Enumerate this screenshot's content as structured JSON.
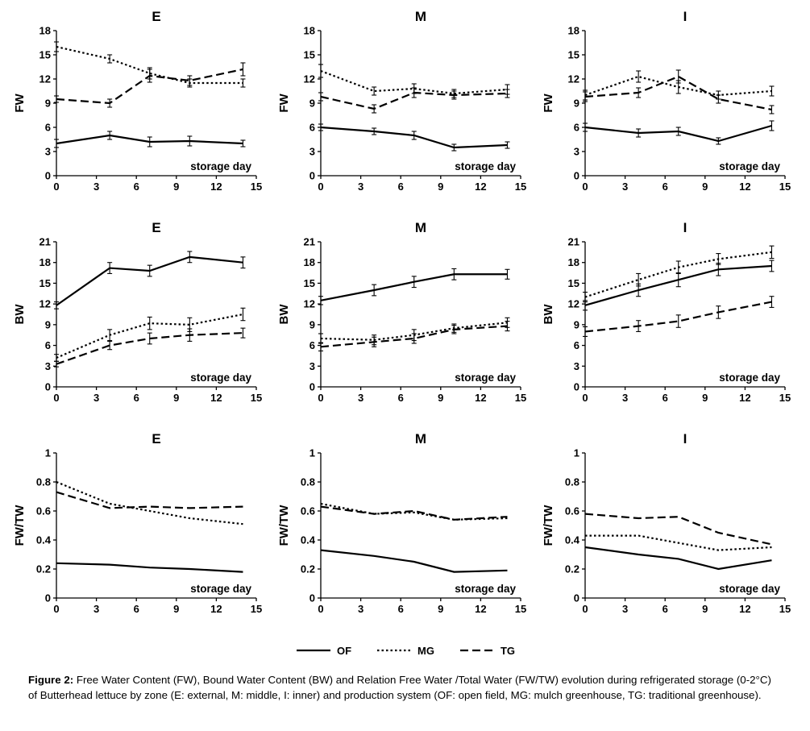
{
  "page": {
    "background": "#ffffff",
    "line_color": "#000000"
  },
  "legend": {
    "items": [
      {
        "label": "OF",
        "style": "solid"
      },
      {
        "label": "MG",
        "style": "dotted"
      },
      {
        "label": "TG",
        "style": "dashed"
      }
    ]
  },
  "caption": {
    "label": "Figure 2:",
    "text": "Free Water Content (FW), Bound Water Content (BW) and Relation Free Water /Total Water (FW/TW) evolution during refrigerated storage (0-2°C) of Butterhead lettuce by zone (E: external, M: middle, I: inner) and production system (OF: open field, MG: mulch greenhouse, TG: traditional greenhouse)."
  },
  "chart_data": [
    {
      "type": "line",
      "title": "E",
      "ylabel": "FW",
      "xlabel_annotation": "storage day",
      "xlim": [
        0,
        15
      ],
      "xticks": [
        0,
        3,
        6,
        9,
        12,
        15
      ],
      "ylim": [
        0,
        18
      ],
      "yticks": [
        0,
        3,
        6,
        9,
        12,
        15,
        18
      ],
      "x": [
        0,
        4,
        7,
        10,
        14
      ],
      "series": [
        {
          "name": "OF",
          "style": "solid",
          "values": [
            4.0,
            5.0,
            4.2,
            4.3,
            4.0
          ],
          "errors": [
            0.5,
            0.5,
            0.6,
            0.6,
            0.4
          ]
        },
        {
          "name": "MG",
          "style": "dotted",
          "values": [
            16.0,
            14.5,
            12.7,
            11.5,
            11.5
          ],
          "errors": [
            0.6,
            0.5,
            0.7,
            0.5,
            0.5
          ]
        },
        {
          "name": "TG",
          "style": "dashed",
          "values": [
            9.5,
            9.0,
            12.4,
            11.8,
            13.2
          ],
          "errors": [
            0.4,
            0.5,
            0.8,
            0.6,
            0.8
          ]
        }
      ]
    },
    {
      "type": "line",
      "title": "M",
      "ylabel": "FW",
      "xlabel_annotation": "storage day",
      "xlim": [
        0,
        15
      ],
      "xticks": [
        0,
        3,
        6,
        9,
        12,
        15
      ],
      "ylim": [
        0,
        18
      ],
      "yticks": [
        0,
        3,
        6,
        9,
        12,
        15,
        18
      ],
      "x": [
        0,
        4,
        7,
        10,
        14
      ],
      "series": [
        {
          "name": "OF",
          "style": "solid",
          "values": [
            6.0,
            5.5,
            5.0,
            3.5,
            3.8
          ],
          "errors": [
            0.4,
            0.4,
            0.5,
            0.4,
            0.4
          ]
        },
        {
          "name": "MG",
          "style": "dotted",
          "values": [
            13.0,
            10.5,
            10.8,
            10.2,
            10.7
          ],
          "errors": [
            0.8,
            0.5,
            0.6,
            0.5,
            0.6
          ]
        },
        {
          "name": "TG",
          "style": "dashed",
          "values": [
            9.8,
            8.3,
            10.3,
            10.0,
            10.2
          ],
          "errors": [
            0.5,
            0.5,
            0.6,
            0.5,
            0.5
          ]
        }
      ]
    },
    {
      "type": "line",
      "title": "I",
      "ylabel": "FW",
      "xlabel_annotation": "storage day",
      "xlim": [
        0,
        15
      ],
      "xticks": [
        0,
        3,
        6,
        9,
        12,
        15
      ],
      "ylim": [
        0,
        18
      ],
      "yticks": [
        0,
        3,
        6,
        9,
        12,
        15,
        18
      ],
      "x": [
        0,
        4,
        7,
        10,
        14
      ],
      "series": [
        {
          "name": "OF",
          "style": "solid",
          "values": [
            6.0,
            5.3,
            5.5,
            4.3,
            6.2
          ],
          "errors": [
            0.5,
            0.5,
            0.5,
            0.4,
            0.6
          ]
        },
        {
          "name": "MG",
          "style": "dotted",
          "values": [
            10.0,
            12.3,
            11.0,
            10.0,
            10.5
          ],
          "errors": [
            0.6,
            0.7,
            0.8,
            0.5,
            0.6
          ]
        },
        {
          "name": "TG",
          "style": "dashed",
          "values": [
            9.8,
            10.3,
            12.3,
            9.5,
            8.2
          ],
          "errors": [
            0.6,
            0.6,
            0.8,
            0.5,
            0.5
          ]
        }
      ]
    },
    {
      "type": "line",
      "title": "E",
      "ylabel": "BW",
      "xlabel_annotation": "storage day",
      "xlim": [
        0,
        15
      ],
      "xticks": [
        0,
        3,
        6,
        9,
        12,
        15
      ],
      "ylim": [
        0,
        21
      ],
      "yticks": [
        0,
        3,
        6,
        9,
        12,
        15,
        18,
        21
      ],
      "x": [
        0,
        4,
        7,
        10,
        14
      ],
      "series": [
        {
          "name": "OF",
          "style": "solid",
          "values": [
            11.8,
            17.2,
            16.8,
            18.8,
            18.0
          ],
          "errors": [
            0.5,
            0.8,
            0.8,
            0.8,
            0.8
          ]
        },
        {
          "name": "MG",
          "style": "dotted",
          "values": [
            4.2,
            7.5,
            9.2,
            9.0,
            10.5
          ],
          "errors": [
            0.5,
            0.8,
            0.9,
            1.0,
            0.9
          ]
        },
        {
          "name": "TG",
          "style": "dashed",
          "values": [
            3.3,
            6.0,
            7.0,
            7.5,
            7.8
          ],
          "errors": [
            0.4,
            0.6,
            0.8,
            0.9,
            0.7
          ]
        }
      ]
    },
    {
      "type": "line",
      "title": "M",
      "ylabel": "BW",
      "xlabel_annotation": "storage day",
      "xlim": [
        0,
        15
      ],
      "xticks": [
        0,
        3,
        6,
        9,
        12,
        15
      ],
      "ylim": [
        0,
        21
      ],
      "yticks": [
        0,
        3,
        6,
        9,
        12,
        15,
        18,
        21
      ],
      "x": [
        0,
        4,
        7,
        10,
        14
      ],
      "series": [
        {
          "name": "OF",
          "style": "solid",
          "values": [
            12.5,
            14.0,
            15.2,
            16.3,
            16.3
          ],
          "errors": [
            0.6,
            0.8,
            0.8,
            0.8,
            0.7
          ]
        },
        {
          "name": "MG",
          "style": "dotted",
          "values": [
            7.0,
            6.8,
            7.5,
            8.5,
            9.3
          ],
          "errors": [
            0.7,
            0.7,
            0.8,
            0.6,
            0.7
          ]
        },
        {
          "name": "TG",
          "style": "dashed",
          "values": [
            5.8,
            6.5,
            7.0,
            8.3,
            8.8
          ],
          "errors": [
            0.6,
            0.7,
            0.7,
            0.6,
            0.7
          ]
        }
      ]
    },
    {
      "type": "line",
      "title": "I",
      "ylabel": "BW",
      "xlabel_annotation": "storage day",
      "xlim": [
        0,
        15
      ],
      "xticks": [
        0,
        3,
        6,
        9,
        12,
        15
      ],
      "ylim": [
        0,
        21
      ],
      "yticks": [
        0,
        3,
        6,
        9,
        12,
        15,
        18,
        21
      ],
      "x": [
        0,
        4,
        7,
        10,
        14
      ],
      "series": [
        {
          "name": "OF",
          "style": "solid",
          "values": [
            11.8,
            14.0,
            15.5,
            17.0,
            17.5
          ],
          "errors": [
            0.7,
            0.9,
            1.0,
            0.9,
            0.8
          ]
        },
        {
          "name": "MG",
          "style": "dotted",
          "values": [
            13.0,
            15.5,
            17.3,
            18.5,
            19.5
          ],
          "errors": [
            0.7,
            0.9,
            0.9,
            0.8,
            0.9
          ]
        },
        {
          "name": "TG",
          "style": "dashed",
          "values": [
            8.0,
            8.8,
            9.5,
            10.8,
            12.3
          ],
          "errors": [
            0.7,
            0.8,
            0.9,
            0.9,
            0.8
          ]
        }
      ]
    },
    {
      "type": "line",
      "title": "E",
      "ylabel": "FW/TW",
      "xlabel_annotation": "storage day",
      "xlim": [
        0,
        15
      ],
      "xticks": [
        0,
        3,
        6,
        9,
        12,
        15
      ],
      "ylim": [
        0,
        1
      ],
      "yticks": [
        0,
        0.2,
        0.4,
        0.6,
        0.8,
        1
      ],
      "x": [
        0,
        4,
        7,
        10,
        14
      ],
      "series": [
        {
          "name": "OF",
          "style": "solid",
          "values": [
            0.24,
            0.23,
            0.21,
            0.2,
            0.18
          ],
          "errors": null
        },
        {
          "name": "MG",
          "style": "dotted",
          "values": [
            0.8,
            0.65,
            0.6,
            0.55,
            0.51
          ],
          "errors": null
        },
        {
          "name": "TG",
          "style": "dashed",
          "values": [
            0.73,
            0.62,
            0.63,
            0.62,
            0.63
          ],
          "errors": null
        }
      ]
    },
    {
      "type": "line",
      "title": "M",
      "ylabel": "FW/TW",
      "xlabel_annotation": "storage day",
      "xlim": [
        0,
        15
      ],
      "xticks": [
        0,
        3,
        6,
        9,
        12,
        15
      ],
      "ylim": [
        0,
        1
      ],
      "yticks": [
        0,
        0.2,
        0.4,
        0.6,
        0.8,
        1
      ],
      "x": [
        0,
        4,
        7,
        10,
        14
      ],
      "series": [
        {
          "name": "OF",
          "style": "solid",
          "values": [
            0.33,
            0.29,
            0.25,
            0.18,
            0.19
          ],
          "errors": null
        },
        {
          "name": "MG",
          "style": "dotted",
          "values": [
            0.65,
            0.58,
            0.59,
            0.54,
            0.55
          ],
          "errors": null
        },
        {
          "name": "TG",
          "style": "dashed",
          "values": [
            0.63,
            0.58,
            0.6,
            0.54,
            0.56
          ],
          "errors": null
        }
      ]
    },
    {
      "type": "line",
      "title": "I",
      "ylabel": "FW/TW",
      "xlabel_annotation": "storage day",
      "xlim": [
        0,
        15
      ],
      "xticks": [
        0,
        3,
        6,
        9,
        12,
        15
      ],
      "ylim": [
        0,
        1
      ],
      "yticks": [
        0,
        0.2,
        0.4,
        0.6,
        0.8,
        1
      ],
      "x": [
        0,
        4,
        7,
        10,
        14
      ],
      "series": [
        {
          "name": "OF",
          "style": "solid",
          "values": [
            0.35,
            0.3,
            0.27,
            0.2,
            0.26
          ],
          "errors": null
        },
        {
          "name": "MG",
          "style": "dotted",
          "values": [
            0.43,
            0.43,
            0.38,
            0.33,
            0.35
          ],
          "errors": null
        },
        {
          "name": "TG",
          "style": "dashed",
          "values": [
            0.58,
            0.55,
            0.56,
            0.45,
            0.37
          ],
          "errors": null
        }
      ]
    }
  ]
}
